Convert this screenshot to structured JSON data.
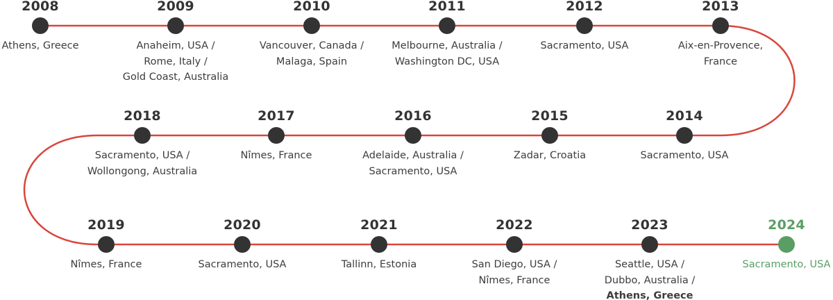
{
  "colors": {
    "path_line": "#d8463c",
    "dot": "#333333",
    "text": "#3d3d3d",
    "highlight": "#5a9e64"
  },
  "timeline": [
    {
      "year": "2008",
      "places": [
        "Athens, Greece"
      ]
    },
    {
      "year": "2009",
      "places": [
        "Anaheim, USA /",
        "Rome, Italy /",
        "Gold Coast, Australia"
      ]
    },
    {
      "year": "2010",
      "places": [
        "Vancouver, Canada /",
        "Malaga, Spain"
      ]
    },
    {
      "year": "2011",
      "places": [
        "Melbourne, Australia /",
        "Washington DC, USA"
      ]
    },
    {
      "year": "2012",
      "places": [
        "Sacramento, USA"
      ]
    },
    {
      "year": "2013",
      "places": [
        "Aix-en-Provence,",
        "France"
      ]
    },
    {
      "year": "2014",
      "places": [
        "Sacramento, USA"
      ]
    },
    {
      "year": "2015",
      "places": [
        "Zadar, Croatia"
      ]
    },
    {
      "year": "2016",
      "places": [
        "Adelaide, Australia /",
        "Sacramento, USA"
      ]
    },
    {
      "year": "2017",
      "places": [
        "Nîmes, France"
      ]
    },
    {
      "year": "2018",
      "places": [
        "Sacramento, USA /",
        "Wollongong, Australia"
      ]
    },
    {
      "year": "2019",
      "places": [
        "Nîmes, France"
      ]
    },
    {
      "year": "2020",
      "places": [
        "Sacramento, USA"
      ]
    },
    {
      "year": "2021",
      "places": [
        "Tallinn, Estonia"
      ]
    },
    {
      "year": "2022",
      "places": [
        "San Diego, USA /",
        "Nîmes, France"
      ]
    },
    {
      "year": "2023",
      "places": [
        "Seattle, USA /",
        "Dubbo, Australia /",
        "Athens, Greece"
      ],
      "bold_places": [
        "Athens, Greece"
      ]
    },
    {
      "year": "2024",
      "places": [
        "Sacramento, USA"
      ],
      "highlight": true
    }
  ]
}
